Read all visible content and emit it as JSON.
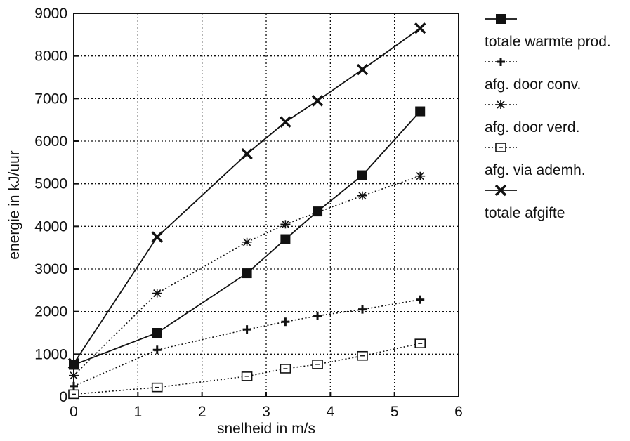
{
  "chart_data": {
    "type": "line",
    "title": "",
    "xlabel": "snelheid in m/s",
    "ylabel": "energie in kJ/uur",
    "xlim": [
      0,
      6
    ],
    "ylim": [
      0,
      9000
    ],
    "xticks": [
      0,
      1,
      2,
      3,
      4,
      5,
      6
    ],
    "yticks": [
      0,
      1000,
      2000,
      3000,
      4000,
      5000,
      6000,
      7000,
      8000,
      9000
    ],
    "grid": true,
    "legend_position": "right",
    "series": [
      {
        "name": "totale warmte prod.",
        "marker": "filled-square",
        "line": "solid",
        "x": [
          0,
          1.3,
          2.7,
          3.3,
          3.8,
          4.5,
          5.4
        ],
        "y": [
          750,
          1500,
          2900,
          3700,
          4350,
          5200,
          6700
        ]
      },
      {
        "name": "afg. door conv.",
        "marker": "plus",
        "line": "dotted",
        "x": [
          0,
          1.3,
          2.7,
          3.3,
          3.8,
          4.5,
          5.4
        ],
        "y": [
          250,
          1100,
          1580,
          1760,
          1900,
          2050,
          2280
        ]
      },
      {
        "name": "afg. door verd.",
        "marker": "asterisk",
        "line": "dotted",
        "x": [
          0,
          1.3,
          2.7,
          3.3,
          4.5,
          5.4
        ],
        "y": [
          500,
          2430,
          3630,
          4050,
          4720,
          5180
        ]
      },
      {
        "name": "afg. via ademh.",
        "marker": "open-square",
        "line": "dotted",
        "x": [
          0,
          1.3,
          2.7,
          3.3,
          3.8,
          4.5,
          5.4
        ],
        "y": [
          60,
          220,
          480,
          660,
          760,
          960,
          1250
        ]
      },
      {
        "name": "totale afgifte",
        "marker": "x",
        "line": "solid",
        "x": [
          0,
          1.3,
          2.7,
          3.3,
          3.8,
          4.5,
          5.4
        ],
        "y": [
          780,
          3750,
          5700,
          6450,
          6950,
          7680,
          8650
        ]
      }
    ]
  }
}
